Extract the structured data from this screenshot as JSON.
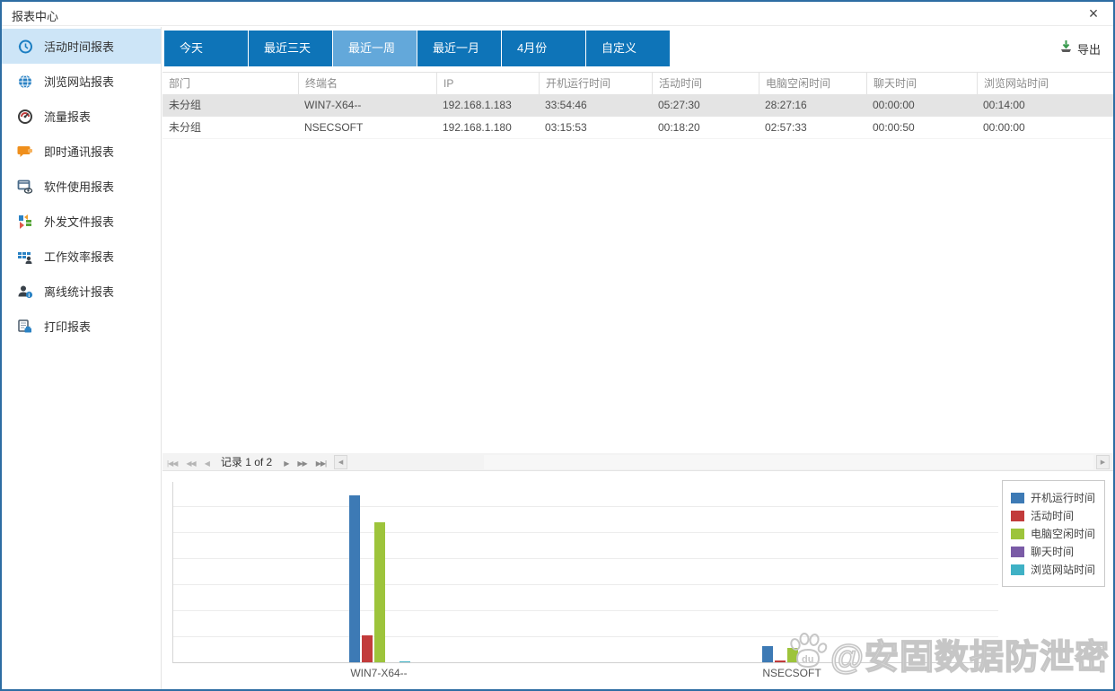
{
  "window": {
    "title": "报表中心",
    "close_label": "×"
  },
  "sidebar": {
    "items": [
      {
        "label": "活动时间报表",
        "icon": "history-clock-icon",
        "active": true
      },
      {
        "label": "浏览网站报表",
        "icon": "globe-icon",
        "active": false
      },
      {
        "label": "流量报表",
        "icon": "gauge-icon",
        "active": false
      },
      {
        "label": "即时通讯报表",
        "icon": "chat-bubble-icon",
        "active": false
      },
      {
        "label": "软件使用报表",
        "icon": "software-usage-icon",
        "active": false
      },
      {
        "label": "外发文件报表",
        "icon": "outgoing-file-icon",
        "active": false
      },
      {
        "label": "工作效率报表",
        "icon": "efficiency-grid-icon",
        "active": false
      },
      {
        "label": "离线统计报表",
        "icon": "offline-user-icon",
        "active": false
      },
      {
        "label": "打印报表",
        "icon": "print-icon",
        "active": false
      }
    ]
  },
  "toolbar": {
    "tabs": [
      {
        "label": "今天",
        "active": false
      },
      {
        "label": "最近三天",
        "active": false
      },
      {
        "label": "最近一周",
        "active": true
      },
      {
        "label": "最近一月",
        "active": false
      },
      {
        "label": "4月份",
        "active": false
      },
      {
        "label": "自定义",
        "active": false
      }
    ],
    "export_label": "导出",
    "tab_color": "#0e74b8",
    "tab_active_color": "#63a8da",
    "export_icon_color": "#3a9b4f"
  },
  "table": {
    "columns": [
      "部门",
      "终端名",
      "IP",
      "开机运行时间",
      "活动时间",
      "电脑空闲时间",
      "聊天时间",
      "浏览网站时间"
    ],
    "rows": [
      {
        "selected": true,
        "cells": [
          "未分组",
          "WIN7-X64--",
          "192.168.1.183",
          "33:54:46",
          "05:27:30",
          "28:27:16",
          "00:00:00",
          "00:14:00"
        ]
      },
      {
        "selected": false,
        "cells": [
          "未分组",
          "NSECSOFT",
          "192.168.1.180",
          "03:15:53",
          "00:18:20",
          "02:57:33",
          "00:00:50",
          "00:00:00"
        ]
      }
    ]
  },
  "pagination": {
    "record_text": "记录 1 of 2",
    "nav_prev": [
      "|◀◀",
      "◀◀",
      "◀"
    ],
    "nav_next": [
      "▶",
      "▶▶",
      "▶▶|"
    ],
    "hscroll_left": "◀",
    "hscroll_right": "▶"
  },
  "chart_data": {
    "type": "bar",
    "title": "",
    "xlabel": "",
    "ylabel": "",
    "categories": [
      "WIN7-X64--",
      "NSECSOFT"
    ],
    "series": [
      {
        "name": "开机运行时间",
        "color": "#3d7ab5",
        "values": [
          "33:54:46",
          "03:15:53"
        ],
        "values_hours": [
          33.91,
          3.26
        ]
      },
      {
        "name": "活动时间",
        "color": "#c23b3b",
        "values": [
          "05:27:30",
          "00:18:20"
        ],
        "values_hours": [
          5.46,
          0.31
        ]
      },
      {
        "name": "电脑空闲时间",
        "color": "#9dc43b",
        "values": [
          "28:27:16",
          "02:57:33"
        ],
        "values_hours": [
          28.45,
          2.96
        ]
      },
      {
        "name": "聊天时间",
        "color": "#7a5ba6",
        "values": [
          "00:00:00",
          "00:00:50"
        ],
        "values_hours": [
          0,
          0.01
        ]
      },
      {
        "name": "浏览网站时间",
        "color": "#3fb1c5",
        "values": [
          "00:14:00",
          "00:00:00"
        ],
        "values_hours": [
          0.23,
          0
        ]
      }
    ],
    "ylim": [
      0,
      36.8
    ],
    "grid": true,
    "legend_position": "top-right"
  },
  "watermark": {
    "text": "@安固数据防泄密",
    "icon": "baidu-paw-icon"
  }
}
